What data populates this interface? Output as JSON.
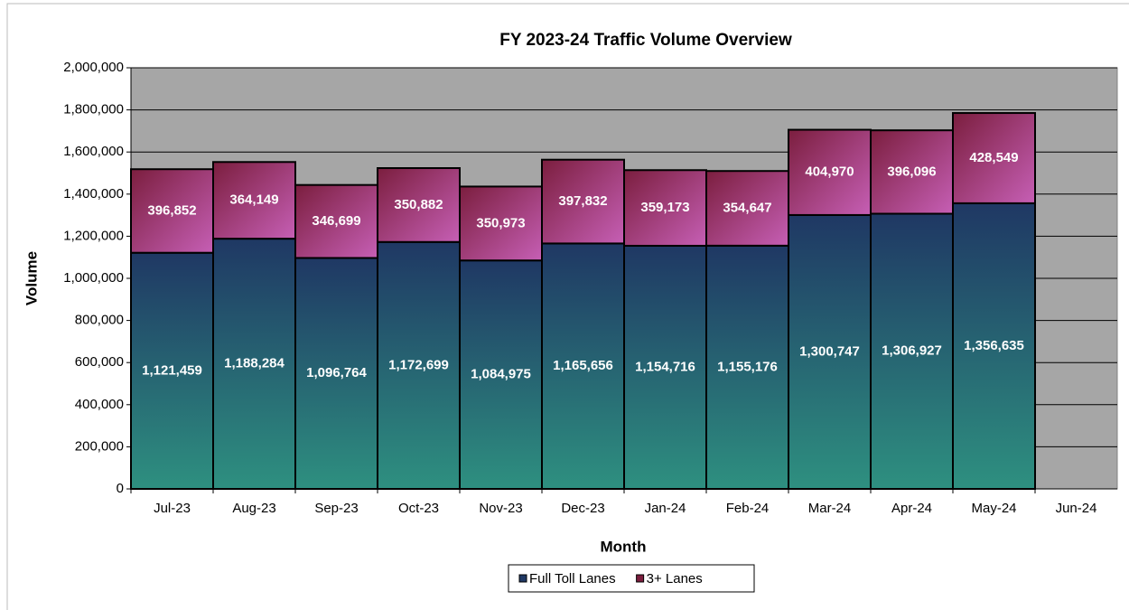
{
  "chart_data": {
    "type": "stacked_bar",
    "title": "FY 2023-24 Traffic Volume Overview",
    "x_label": "Month",
    "y_label": "Volume",
    "categories": [
      "Jul-23",
      "Aug-23",
      "Sep-23",
      "Oct-23",
      "Nov-23",
      "Dec-23",
      "Jan-24",
      "Feb-24",
      "Mar-24",
      "Apr-24",
      "May-24",
      "Jun-24"
    ],
    "series": [
      {
        "name": "Full Toll Lanes",
        "color": "#1f3864",
        "values": [
          1121459,
          1188284,
          1096764,
          1172699,
          1084975,
          1165656,
          1154716,
          1155176,
          1300747,
          1306927,
          1356635,
          null
        ],
        "value_labels": [
          "1,121,459",
          "1,188,284",
          "1,096,764",
          "1,172,699",
          "1,084,975",
          "1,165,656",
          "1,154,716",
          "1,155,176",
          "1,300,747",
          "1,306,927",
          "1,356,635",
          null
        ]
      },
      {
        "name": "3+ Lanes",
        "color": "#7b1e3e",
        "values": [
          396852,
          364149,
          346699,
          350882,
          350973,
          397832,
          359173,
          354647,
          404970,
          396096,
          428549,
          null
        ],
        "value_labels": [
          "396,852",
          "364,149",
          "346,699",
          "350,882",
          "350,973",
          "397,832",
          "359,173",
          "354,647",
          "404,970",
          "396,096",
          "428,549",
          null
        ]
      }
    ],
    "ylim": [
      0,
      2000000
    ],
    "yticks": [
      {
        "value": 0,
        "label": "0"
      },
      {
        "value": 200000,
        "label": "200,000"
      },
      {
        "value": 400000,
        "label": "400,000"
      },
      {
        "value": 600000,
        "label": "600,000"
      },
      {
        "value": 800000,
        "label": "800,000"
      },
      {
        "value": 1000000,
        "label": "1,000,000"
      },
      {
        "value": 1200000,
        "label": "1,200,000"
      },
      {
        "value": 1400000,
        "label": "1,400,000"
      },
      {
        "value": 1600000,
        "label": "1,600,000"
      },
      {
        "value": 1800000,
        "label": "1,800,000"
      },
      {
        "value": 2000000,
        "label": "2,000,000"
      }
    ],
    "grid": true,
    "legend": "bottom"
  }
}
